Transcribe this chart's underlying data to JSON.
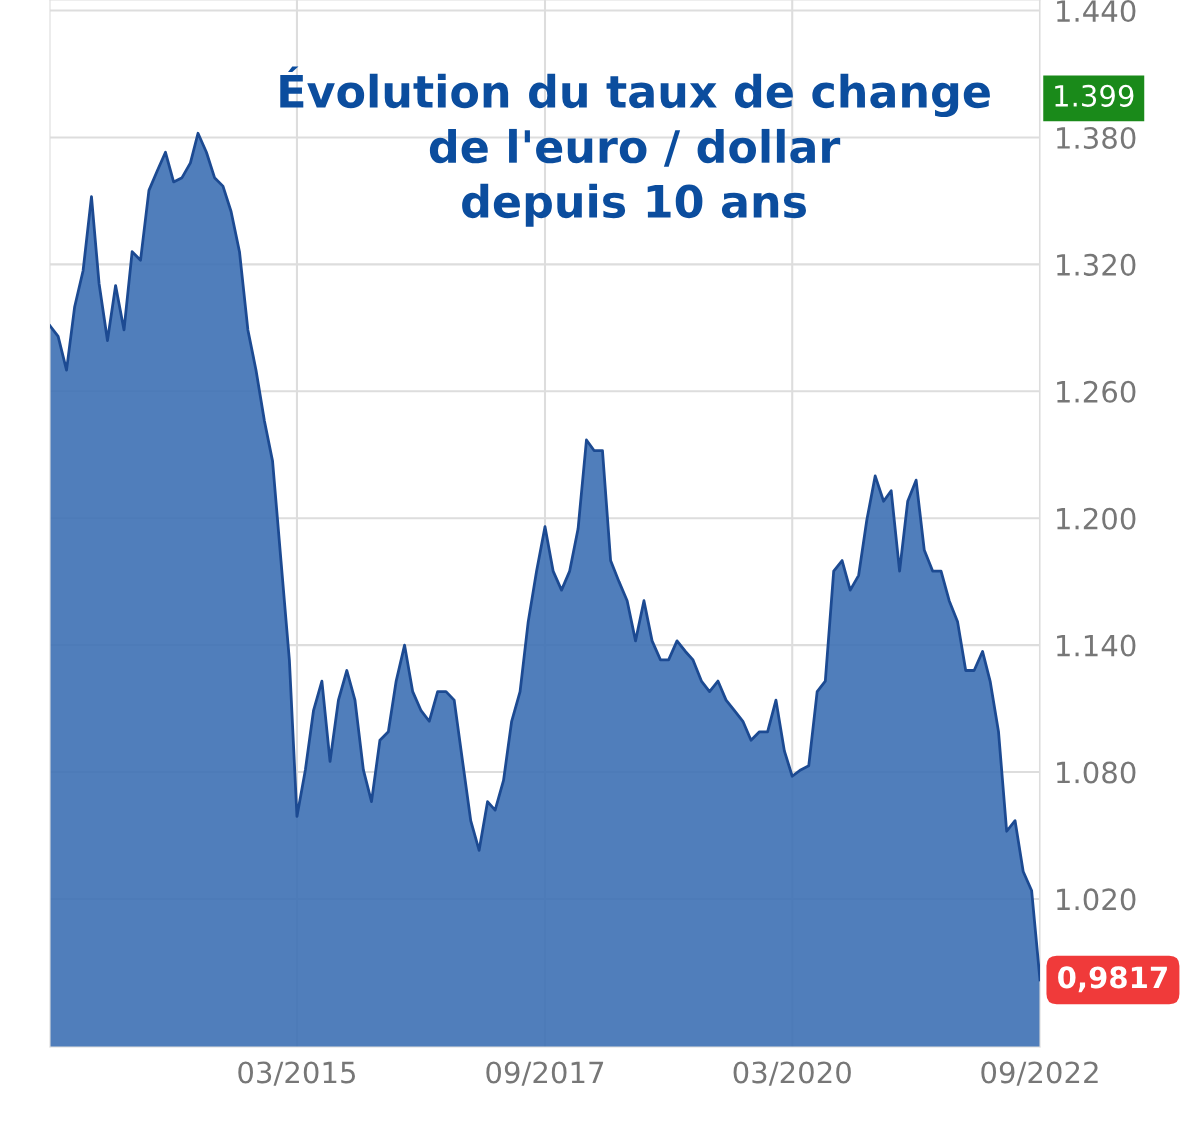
{
  "chart_data": {
    "type": "area",
    "title": "Évolution du taux de change\nde l'euro / dollar\ndepuis 10 ans",
    "x": [
      "2012-09",
      "2012-10",
      "2012-11",
      "2012-12",
      "2013-01",
      "2013-02",
      "2013-03",
      "2013-04",
      "2013-05",
      "2013-06",
      "2013-07",
      "2013-08",
      "2013-09",
      "2013-10",
      "2013-11",
      "2013-12",
      "2014-01",
      "2014-02",
      "2014-03",
      "2014-04",
      "2014-05",
      "2014-06",
      "2014-07",
      "2014-08",
      "2014-09",
      "2014-10",
      "2014-11",
      "2014-12",
      "2015-01",
      "2015-02",
      "2015-03",
      "2015-04",
      "2015-05",
      "2015-06",
      "2015-07",
      "2015-08",
      "2015-09",
      "2015-10",
      "2015-11",
      "2015-12",
      "2016-01",
      "2016-02",
      "2016-03",
      "2016-04",
      "2016-05",
      "2016-06",
      "2016-07",
      "2016-08",
      "2016-09",
      "2016-10",
      "2016-11",
      "2016-12",
      "2017-01",
      "2017-02",
      "2017-03",
      "2017-04",
      "2017-05",
      "2017-06",
      "2017-07",
      "2017-08",
      "2017-09",
      "2017-10",
      "2017-11",
      "2017-12",
      "2018-01",
      "2018-02",
      "2018-03",
      "2018-04",
      "2018-05",
      "2018-06",
      "2018-07",
      "2018-08",
      "2018-09",
      "2018-10",
      "2018-11",
      "2018-12",
      "2019-01",
      "2019-02",
      "2019-03",
      "2019-04",
      "2019-05",
      "2019-06",
      "2019-07",
      "2019-08",
      "2019-09",
      "2019-10",
      "2019-11",
      "2019-12",
      "2020-01",
      "2020-02",
      "2020-03",
      "2020-04",
      "2020-05",
      "2020-06",
      "2020-07",
      "2020-08",
      "2020-09",
      "2020-10",
      "2020-11",
      "2020-12",
      "2021-01",
      "2021-02",
      "2021-03",
      "2021-04",
      "2021-05",
      "2021-06",
      "2021-07",
      "2021-08",
      "2021-09",
      "2021-10",
      "2021-11",
      "2021-12",
      "2022-01",
      "2022-02",
      "2022-03",
      "2022-04",
      "2022-05",
      "2022-06",
      "2022-07",
      "2022-08",
      "2022-09"
    ],
    "series": [
      {
        "color": "#3d70b4",
        "values": [
          1.291,
          1.286,
          1.27,
          1.3,
          1.317,
          1.352,
          1.311,
          1.284,
          1.31,
          1.289,
          1.326,
          1.322,
          1.355,
          1.364,
          1.373,
          1.359,
          1.361,
          1.368,
          1.382,
          1.373,
          1.361,
          1.357,
          1.345,
          1.326,
          1.289,
          1.27,
          1.246,
          1.227,
          1.18,
          1.133,
          1.059,
          1.081,
          1.109,
          1.123,
          1.085,
          1.114,
          1.128,
          1.114,
          1.081,
          1.066,
          1.095,
          1.099,
          1.123,
          1.14,
          1.118,
          1.109,
          1.104,
          1.118,
          1.118,
          1.114,
          1.085,
          1.057,
          1.043,
          1.066,
          1.062,
          1.076,
          1.104,
          1.118,
          1.151,
          1.175,
          1.196,
          1.175,
          1.166,
          1.175,
          1.195,
          1.237,
          1.232,
          1.232,
          1.18,
          1.17,
          1.161,
          1.142,
          1.161,
          1.142,
          1.133,
          1.133,
          1.142,
          1.137,
          1.133,
          1.123,
          1.118,
          1.123,
          1.114,
          1.109,
          1.104,
          1.095,
          1.099,
          1.099,
          1.114,
          1.09,
          1.078,
          1.081,
          1.083,
          1.118,
          1.123,
          1.175,
          1.18,
          1.166,
          1.173,
          1.199,
          1.22,
          1.208,
          1.213,
          1.175,
          1.208,
          1.218,
          1.185,
          1.175,
          1.175,
          1.161,
          1.151,
          1.128,
          1.128,
          1.137,
          1.123,
          1.099,
          1.052,
          1.057,
          1.033,
          1.024,
          0.9817
        ]
      }
    ],
    "xlim": [
      "2012-09",
      "2022-09"
    ],
    "xticks": [
      {
        "value": "2015-03",
        "label": "03/2015"
      },
      {
        "value": "2017-09",
        "label": "09/2017"
      },
      {
        "value": "2020-03",
        "label": "03/2020"
      },
      {
        "value": "2022-09",
        "label": "09/2022"
      }
    ],
    "ylim": [
      0.95,
      1.445
    ],
    "yticks": [
      {
        "value": 1.02,
        "label": "1.020"
      },
      {
        "value": 1.08,
        "label": "1.080"
      },
      {
        "value": 1.14,
        "label": "1.140"
      },
      {
        "value": 1.2,
        "label": "1.200"
      },
      {
        "value": 1.26,
        "label": "1.260"
      },
      {
        "value": 1.32,
        "label": "1.320"
      },
      {
        "value": 1.38,
        "label": "1.380"
      },
      {
        "value": 1.44,
        "label": "1.440"
      }
    ],
    "grid": true,
    "annotations": [
      "1.399",
      {
        "text": "0,9817",
        "x": "2022-09",
        "y": 0.9817
      }
    ]
  }
}
